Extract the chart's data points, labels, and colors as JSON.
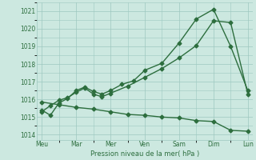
{
  "background_color": "#cce8e0",
  "grid_color": "#9dc8c0",
  "line_color": "#2d6e3e",
  "ylabel": "Pression niveau de la mer( hPa )",
  "ylim": [
    1013.7,
    1021.5
  ],
  "yticks": [
    1014,
    1015,
    1016,
    1017,
    1018,
    1019,
    1020,
    1021
  ],
  "xtick_labels": [
    "Meu",
    "Mar",
    "Mer",
    "Ven",
    "Sam",
    "Dim",
    "Lun"
  ],
  "xtick_pos": [
    0,
    1,
    2,
    3,
    4,
    5,
    6
  ],
  "line1_x": [
    0,
    0.25,
    0.5,
    0.75,
    1.0,
    1.25,
    1.5,
    1.75,
    2.0,
    2.33,
    2.67,
    3.0,
    3.5,
    4.0,
    4.5,
    5.0,
    5.5,
    6.0
  ],
  "line1_y": [
    1015.4,
    1015.1,
    1015.8,
    1016.05,
    1016.5,
    1016.7,
    1016.45,
    1016.3,
    1016.5,
    1016.85,
    1017.05,
    1017.65,
    1018.05,
    1019.2,
    1020.55,
    1021.1,
    1019.0,
    1016.5
  ],
  "line2_x": [
    0,
    0.25,
    0.5,
    0.75,
    1.0,
    1.25,
    1.5,
    1.75,
    2.0,
    2.5,
    3.0,
    3.5,
    4.0,
    4.5,
    5.0,
    5.5,
    6.0
  ],
  "line2_y": [
    1015.3,
    1015.65,
    1015.95,
    1016.1,
    1016.4,
    1016.65,
    1016.3,
    1016.15,
    1016.35,
    1016.75,
    1017.25,
    1017.75,
    1018.35,
    1019.05,
    1020.45,
    1020.35,
    1016.3
  ],
  "line3_x": [
    0,
    0.5,
    1.0,
    1.5,
    2.0,
    2.5,
    3.0,
    3.5,
    4.0,
    4.5,
    5.0,
    5.5,
    6.0
  ],
  "line3_y": [
    1015.85,
    1015.7,
    1015.55,
    1015.45,
    1015.3,
    1015.15,
    1015.1,
    1015.0,
    1014.95,
    1014.8,
    1014.75,
    1014.25,
    1014.2
  ],
  "figsize": [
    3.2,
    2.0
  ],
  "dpi": 100
}
